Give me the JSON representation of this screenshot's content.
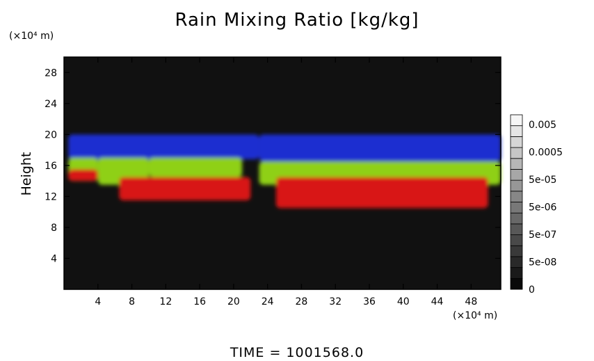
{
  "chart_data": {
    "type": "heatmap",
    "title": "Rain Mixing Ratio [kg/kg]",
    "ylabel": "Height",
    "xlabel": "",
    "y_unit": "(×10⁴ m)",
    "x_unit": "(×10⁴ m)",
    "xlim": [
      0,
      51.5
    ],
    "ylim": [
      0,
      30
    ],
    "x_ticks": [
      4,
      8,
      12,
      16,
      20,
      24,
      28,
      32,
      36,
      40,
      44,
      48
    ],
    "y_ticks": [
      4,
      8,
      12,
      16,
      20,
      24,
      28
    ],
    "colorbar": {
      "labels": [
        "0.005",
        "0.0005",
        "5e-05",
        "5e-06",
        "5e-07",
        "5e-08",
        "0"
      ],
      "levels": 16
    },
    "bands": [
      {
        "color": "#1f2fd0",
        "segments": [
          [
            0.5,
            23,
            16.8,
            20
          ],
          [
            23,
            51.5,
            16.5,
            20
          ]
        ]
      },
      {
        "color": "#8fd016",
        "segments": [
          [
            0.5,
            4,
            14,
            17
          ],
          [
            4,
            10,
            13.5,
            17
          ],
          [
            10,
            21,
            14.5,
            17
          ],
          [
            23,
            51.5,
            13.5,
            16.5
          ]
        ]
      },
      {
        "color": "#d81414",
        "segments": [
          [
            0.5,
            4,
            14,
            15.5
          ],
          [
            6.5,
            22,
            11.5,
            14.5
          ],
          [
            25,
            50,
            10.5,
            14.5
          ]
        ]
      }
    ],
    "footer": "TIME = 1001568.0"
  }
}
